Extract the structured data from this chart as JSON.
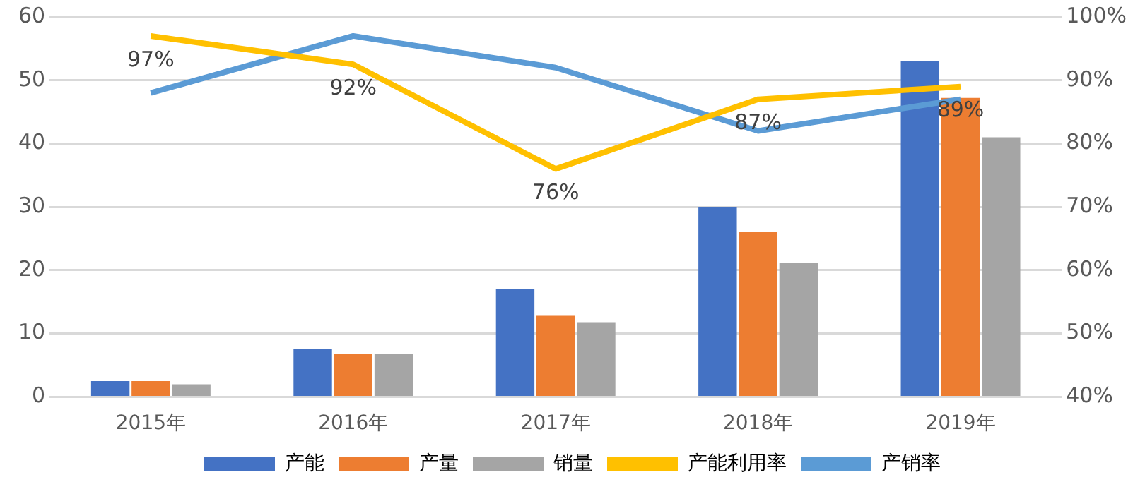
{
  "chart_data": {
    "type": "bar",
    "categories": [
      "2015年",
      "2016年",
      "2017年",
      "2018年",
      "2019年"
    ],
    "series": [
      {
        "name": "产能",
        "color": "#4472c4",
        "values": [
          2.5,
          7.5,
          17.1,
          30,
          53
        ]
      },
      {
        "name": "产量",
        "color": "#ed7d31",
        "values": [
          2.5,
          6.8,
          12.8,
          26,
          47.2
        ]
      },
      {
        "name": "销量",
        "color": "#a5a5a5",
        "values": [
          2,
          6.8,
          11.8,
          21.2,
          41
        ]
      },
      {
        "name": "产能利用率",
        "type": "line",
        "axis": "y2",
        "color": "#ffc000",
        "values": [
          97,
          92.5,
          76,
          87,
          89
        ],
        "value_labels": [
          "97%",
          "92%",
          "76%",
          "87%",
          "89%"
        ]
      },
      {
        "name": "产销率",
        "type": "line",
        "axis": "y2",
        "color": "#5b9bd5",
        "values": [
          88,
          97,
          92,
          82,
          87
        ]
      }
    ],
    "ylim": [
      0,
      60
    ],
    "yticks": [
      0,
      10,
      20,
      30,
      40,
      50,
      60
    ],
    "y2lim": [
      40,
      100
    ],
    "y2ticks": [
      {
        "value": 40,
        "label": "40%"
      },
      {
        "value": 50,
        "label": "50%"
      },
      {
        "value": 60,
        "label": "60%"
      },
      {
        "value": 70,
        "label": "70%"
      },
      {
        "value": 80,
        "label": "80%"
      },
      {
        "value": 90,
        "label": "90%"
      },
      {
        "value": 100,
        "label": "100%"
      }
    ],
    "grid": "y",
    "legend": "bottom",
    "marker": "none"
  }
}
